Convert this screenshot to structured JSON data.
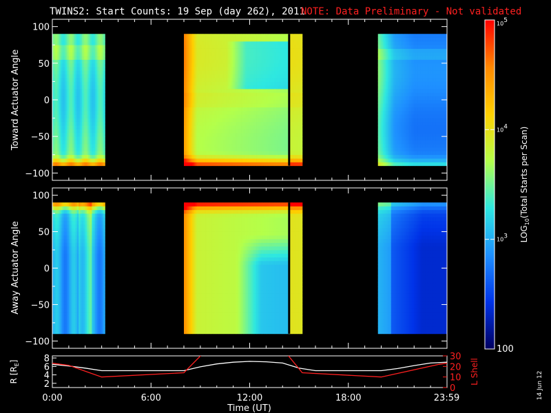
{
  "header": {
    "title": "TWINS2: Start Counts: 19 Sep (day 262), 2011",
    "note": "NOTE: Data Preliminary - Not validated"
  },
  "colors": {
    "background": "#000000",
    "foreground": "#ffffff",
    "note": "#ff2020",
    "lshell": "#ff2020",
    "data_gap": "#000000"
  },
  "colorbar": {
    "label": "LOG10(Total Starts per Scan)",
    "label_main": "LOG",
    "label_sub": "10",
    "label_rest": "(Total Starts per Scan)",
    "scale": "log",
    "range": [
      100,
      100000
    ],
    "ticks": [
      {
        "value": 100000,
        "base": "10",
        "exp": "5"
      },
      {
        "value": 10000,
        "base": "10",
        "exp": "4"
      },
      {
        "value": 1000,
        "base": "10",
        "exp": "3"
      },
      {
        "value": 100,
        "base": "100",
        "exp": ""
      }
    ],
    "palette": [
      "#ff0000",
      "#ff8800",
      "#ffd000",
      "#b4ff4a",
      "#2ee8e0",
      "#1e90ff",
      "#0033e8",
      "#000060"
    ]
  },
  "chart_data": [
    {
      "type": "heatmap",
      "name": "toward",
      "ylabel": "Toward Actuator Angle",
      "xlim": [
        0,
        24
      ],
      "ylim": [
        -110,
        110
      ],
      "yticks": [
        "100",
        "50",
        "0",
        "-50",
        "-100"
      ],
      "ytick_values": [
        100,
        50,
        0,
        -50,
        -100
      ],
      "angle_range": [
        -90,
        90
      ],
      "data_intervals_hours": [
        [
          0,
          3.2
        ],
        [
          8,
          15.2
        ],
        [
          19.8,
          24
        ]
      ],
      "vertical_marker_hour": 14.4,
      "dominant_log10_counts": [
        3.3,
        3.7,
        3.1
      ],
      "edge_enhancement": "angles near -85 deg reach ~10^4.5 - 10^5"
    },
    {
      "type": "heatmap",
      "name": "away",
      "ylabel": "Away Actuator Angle",
      "xlim": [
        0,
        24
      ],
      "ylim": [
        -110,
        110
      ],
      "yticks": [
        "100",
        "50",
        "0",
        "-50",
        "-100"
      ],
      "ytick_values": [
        100,
        50,
        0,
        -50,
        -100
      ],
      "angle_range": [
        -90,
        90
      ],
      "data_intervals_hours": [
        [
          0,
          3.2
        ],
        [
          8,
          15.2
        ],
        [
          19.8,
          24
        ]
      ],
      "vertical_marker_hour": 14.4,
      "dominant_log10_counts": [
        2.8,
        3.7,
        2.6
      ],
      "edge_enhancement": "angles near +85 deg reach ~10^4.5 - 10^5"
    },
    {
      "type": "line",
      "name": "orbit",
      "xlabel": "Time (UT)",
      "xticks": [
        "0:00",
        "6:00",
        "12:00",
        "18:00",
        "23:59"
      ],
      "xtick_hours": [
        0,
        6,
        12,
        18,
        23.98
      ],
      "ylabel_left": "R [RE]",
      "ylabel_left_main": "R [R",
      "ylabel_left_sub": "E",
      "ylabel_left_end": "]",
      "yticks_left": [
        "8",
        "6",
        "4",
        "2"
      ],
      "ylim_left": [
        1,
        8.5
      ],
      "ylabel_right": "L Shell",
      "yticks_right": [
        "30",
        "20",
        "10",
        "0"
      ],
      "ylim_right": [
        0,
        30
      ],
      "series": [
        {
          "name": "R",
          "axis": "left",
          "x": [
            0,
            1,
            2,
            3,
            4,
            5,
            6,
            7,
            8,
            9,
            10,
            11,
            12,
            13,
            14,
            15,
            16,
            17,
            18,
            19,
            20,
            21,
            22,
            23,
            24
          ],
          "y": [
            6.5,
            6.1,
            5.6,
            5.0,
            5.0,
            5.0,
            5.0,
            5.0,
            5.0,
            5.9,
            6.6,
            7.0,
            7.2,
            7.1,
            6.8,
            5.6,
            5.0,
            5.0,
            5.0,
            5.0,
            5.0,
            5.5,
            6.2,
            6.8,
            7.0
          ]
        },
        {
          "name": "L Shell",
          "axis": "right",
          "x": [
            0,
            1,
            3,
            8,
            9.2,
            14.2,
            15.2,
            20,
            23.5,
            24
          ],
          "y": [
            23,
            21,
            10,
            14,
            33,
            33,
            14,
            10,
            22,
            23
          ]
        }
      ]
    }
  ],
  "side_text": "14 Jun 12"
}
